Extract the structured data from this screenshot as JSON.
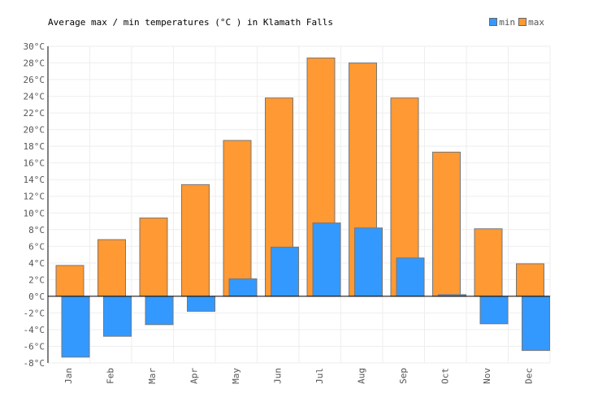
{
  "chart_data": {
    "type": "bar",
    "title": "Average max / min temperatures (°C ) in Klamath Falls",
    "categories": [
      "Jan",
      "Feb",
      "Mar",
      "Apr",
      "May",
      "Jun",
      "Jul",
      "Aug",
      "Sep",
      "Oct",
      "Nov",
      "Dec"
    ],
    "series": [
      {
        "name": "min",
        "color": "#3399ff",
        "values": [
          -7.3,
          -4.8,
          -3.4,
          -1.8,
          2.1,
          5.9,
          8.8,
          8.2,
          4.6,
          0.2,
          -3.3,
          -6.5
        ]
      },
      {
        "name": "max",
        "color": "#ff9933",
        "values": [
          3.7,
          6.8,
          9.4,
          13.4,
          18.7,
          23.8,
          28.6,
          28.0,
          23.8,
          17.3,
          8.1,
          3.9
        ]
      }
    ],
    "ylim": [
      -8,
      30
    ],
    "ytick_step": 2,
    "ytick_suffix": "°C",
    "xlabel": "",
    "ylabel": "",
    "grid": true,
    "legend_position": "top-right"
  }
}
